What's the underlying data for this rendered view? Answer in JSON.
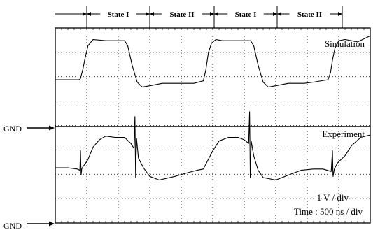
{
  "chart_data": [
    {
      "type": "line",
      "panel": "top",
      "annotation_title": "Simulation",
      "state_labels": [
        "State I",
        "State II",
        "State I",
        "State II"
      ],
      "grid": true,
      "x_unit": "ns",
      "xlim": [
        0,
        5000
      ],
      "x": [
        0,
        380,
        400,
        440,
        470,
        520,
        600,
        800,
        1100,
        1150,
        1220,
        1300,
        1380,
        1500,
        1700,
        1900,
        2200,
        2350,
        2390,
        2430,
        2480,
        2550,
        2650,
        2850,
        3100,
        3150,
        3220,
        3300,
        3380,
        3500,
        3700,
        3950,
        4100,
        4330,
        4370,
        4400,
        4440,
        4500,
        4600,
        4700,
        4800,
        5000
      ],
      "series": [
        {
          "values": [
            0.0,
            0.0,
            0.05,
            0.45,
            0.85,
            1.4,
            1.65,
            1.6,
            1.6,
            1.4,
            0.6,
            -0.1,
            -0.3,
            -0.25,
            -0.15,
            -0.15,
            -0.15,
            -0.05,
            0.4,
            1.1,
            1.5,
            1.65,
            1.6,
            1.6,
            1.6,
            1.4,
            0.6,
            -0.1,
            -0.3,
            -0.25,
            -0.15,
            -0.15,
            -0.1,
            0.0,
            0.3,
            0.8,
            1.3,
            1.6,
            1.65,
            1.6,
            1.55,
            1.8
          ]
        }
      ]
    },
    {
      "type": "line",
      "panel": "bottom",
      "annotation_title": "Experiment",
      "grid": true,
      "x_unit": "ns",
      "xlim": [
        0,
        5000
      ],
      "x": [
        0,
        200,
        350,
        390,
        400,
        410,
        420,
        440,
        470,
        520,
        600,
        700,
        800,
        950,
        1100,
        1200,
        1250,
        1265,
        1275,
        1290,
        1320,
        1400,
        1500,
        1650,
        1900,
        2100,
        2250,
        2350,
        2400,
        2500,
        2600,
        2750,
        2900,
        3000,
        3070,
        3085,
        3095,
        3110,
        3150,
        3220,
        3300,
        3500,
        3700,
        3900,
        4100,
        4250,
        4380,
        4400,
        4410,
        4430,
        4480,
        4600,
        4700,
        4850,
        5000
      ],
      "series": [
        {
          "values": [
            0.6,
            0.6,
            0.55,
            0.5,
            1.3,
            0.3,
            0.55,
            0.65,
            0.75,
            0.95,
            1.45,
            1.75,
            1.9,
            1.85,
            1.85,
            1.6,
            1.4,
            2.7,
            0.2,
            1.8,
            1.0,
            0.6,
            0.25,
            0.1,
            0.25,
            0.4,
            0.5,
            0.55,
            0.8,
            1.3,
            1.7,
            1.85,
            1.85,
            1.75,
            1.6,
            2.9,
            0.2,
            1.7,
            1.1,
            0.5,
            0.2,
            0.1,
            0.3,
            0.5,
            0.55,
            0.55,
            0.45,
            1.3,
            0.25,
            0.55,
            0.8,
            1.1,
            1.5,
            1.85,
            1.95
          ]
        }
      ]
    }
  ],
  "labels": {
    "gnd_top": "GND",
    "gnd_bottom": "GND",
    "volts_per_div": "1 V / div",
    "time_per_div": "Time : 500 ns / div"
  }
}
